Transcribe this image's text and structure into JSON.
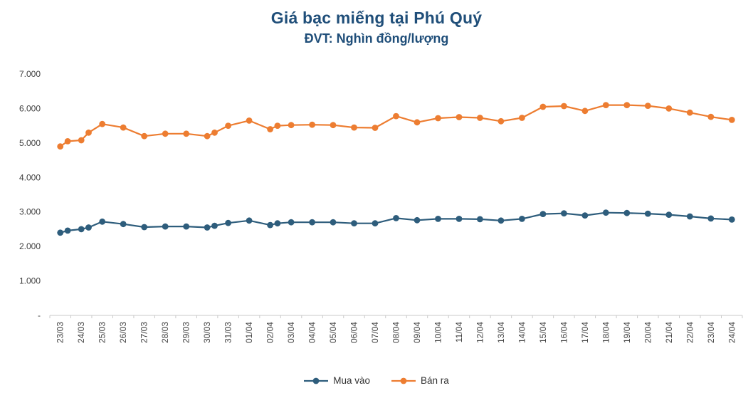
{
  "chart_data": {
    "type": "line",
    "title": "Giá bạc miếng tại Phú Quý",
    "subtitle": "ĐVT: Nghìn đồng/lượng",
    "xlabel": "",
    "ylabel": "",
    "ylim": [
      0,
      7000
    ],
    "grid": false,
    "legend_position": "bottom",
    "y_ticks": [
      {
        "label": "7.000",
        "value": 7000
      },
      {
        "label": "6.000",
        "value": 6000
      },
      {
        "label": "5.000",
        "value": 5000
      },
      {
        "label": "4.000",
        "value": 4000
      },
      {
        "label": "3.000",
        "value": 3000
      },
      {
        "label": "2.000",
        "value": 2000
      },
      {
        "label": "1.000",
        "value": 1000
      },
      {
        "label": "-",
        "value": 0
      }
    ],
    "categories": [
      "23/03",
      "24/03",
      "25/03",
      "26/03",
      "27/03",
      "28/03",
      "29/03",
      "30/03",
      "31/03",
      "01/04",
      "02/04",
      "03/04",
      "04/04",
      "05/04",
      "06/04",
      "07/04",
      "08/04",
      "09/04",
      "10/04",
      "11/04",
      "12/04",
      "13/04",
      "14/04",
      "15/04",
      "16/04",
      "17/04",
      "18/04",
      "19/04",
      "20/04",
      "21/04",
      "22/04",
      "23/04",
      "24/04"
    ],
    "series": [
      {
        "name": "Mua vào",
        "slug": "mua-vao",
        "color": "#2E5D7C",
        "values": [
          2400,
          2500,
          2720,
          2650,
          2560,
          2580,
          2580,
          2550,
          2680,
          2750,
          2620,
          2700,
          2700,
          2700,
          2670,
          2670,
          2820,
          2760,
          2800,
          2800,
          2790,
          2750,
          2800,
          2940,
          2960,
          2900,
          2980,
          2970,
          2950,
          2920,
          2870,
          2810,
          2780
        ]
      },
      {
        "name": "Bán ra",
        "slug": "ban-ra",
        "color": "#ED7D31",
        "values": [
          4900,
          5080,
          5550,
          5450,
          5200,
          5270,
          5270,
          5200,
          5500,
          5650,
          5400,
          5520,
          5530,
          5520,
          5450,
          5440,
          5780,
          5600,
          5720,
          5750,
          5730,
          5630,
          5730,
          6050,
          6070,
          5930,
          6100,
          6100,
          6080,
          6000,
          5880,
          5760,
          5670
        ]
      }
    ],
    "extra_points": [
      {
        "series": "Mua vào",
        "x": 0.35,
        "value": 2460
      },
      {
        "series": "Mua vào",
        "x": 1.35,
        "value": 2550
      },
      {
        "series": "Mua vào",
        "x": 7.35,
        "value": 2600
      },
      {
        "series": "Mua vào",
        "x": 10.35,
        "value": 2670
      },
      {
        "series": "Bán ra",
        "x": 0.35,
        "value": 5050
      },
      {
        "series": "Bán ra",
        "x": 1.35,
        "value": 5300
      },
      {
        "series": "Bán ra",
        "x": 7.35,
        "value": 5300
      },
      {
        "series": "Bán ra",
        "x": 10.35,
        "value": 5500
      }
    ]
  },
  "colors": {
    "title": "#1F4E79",
    "axis_text": "#404040",
    "axis_line": "#c9c9c9"
  }
}
